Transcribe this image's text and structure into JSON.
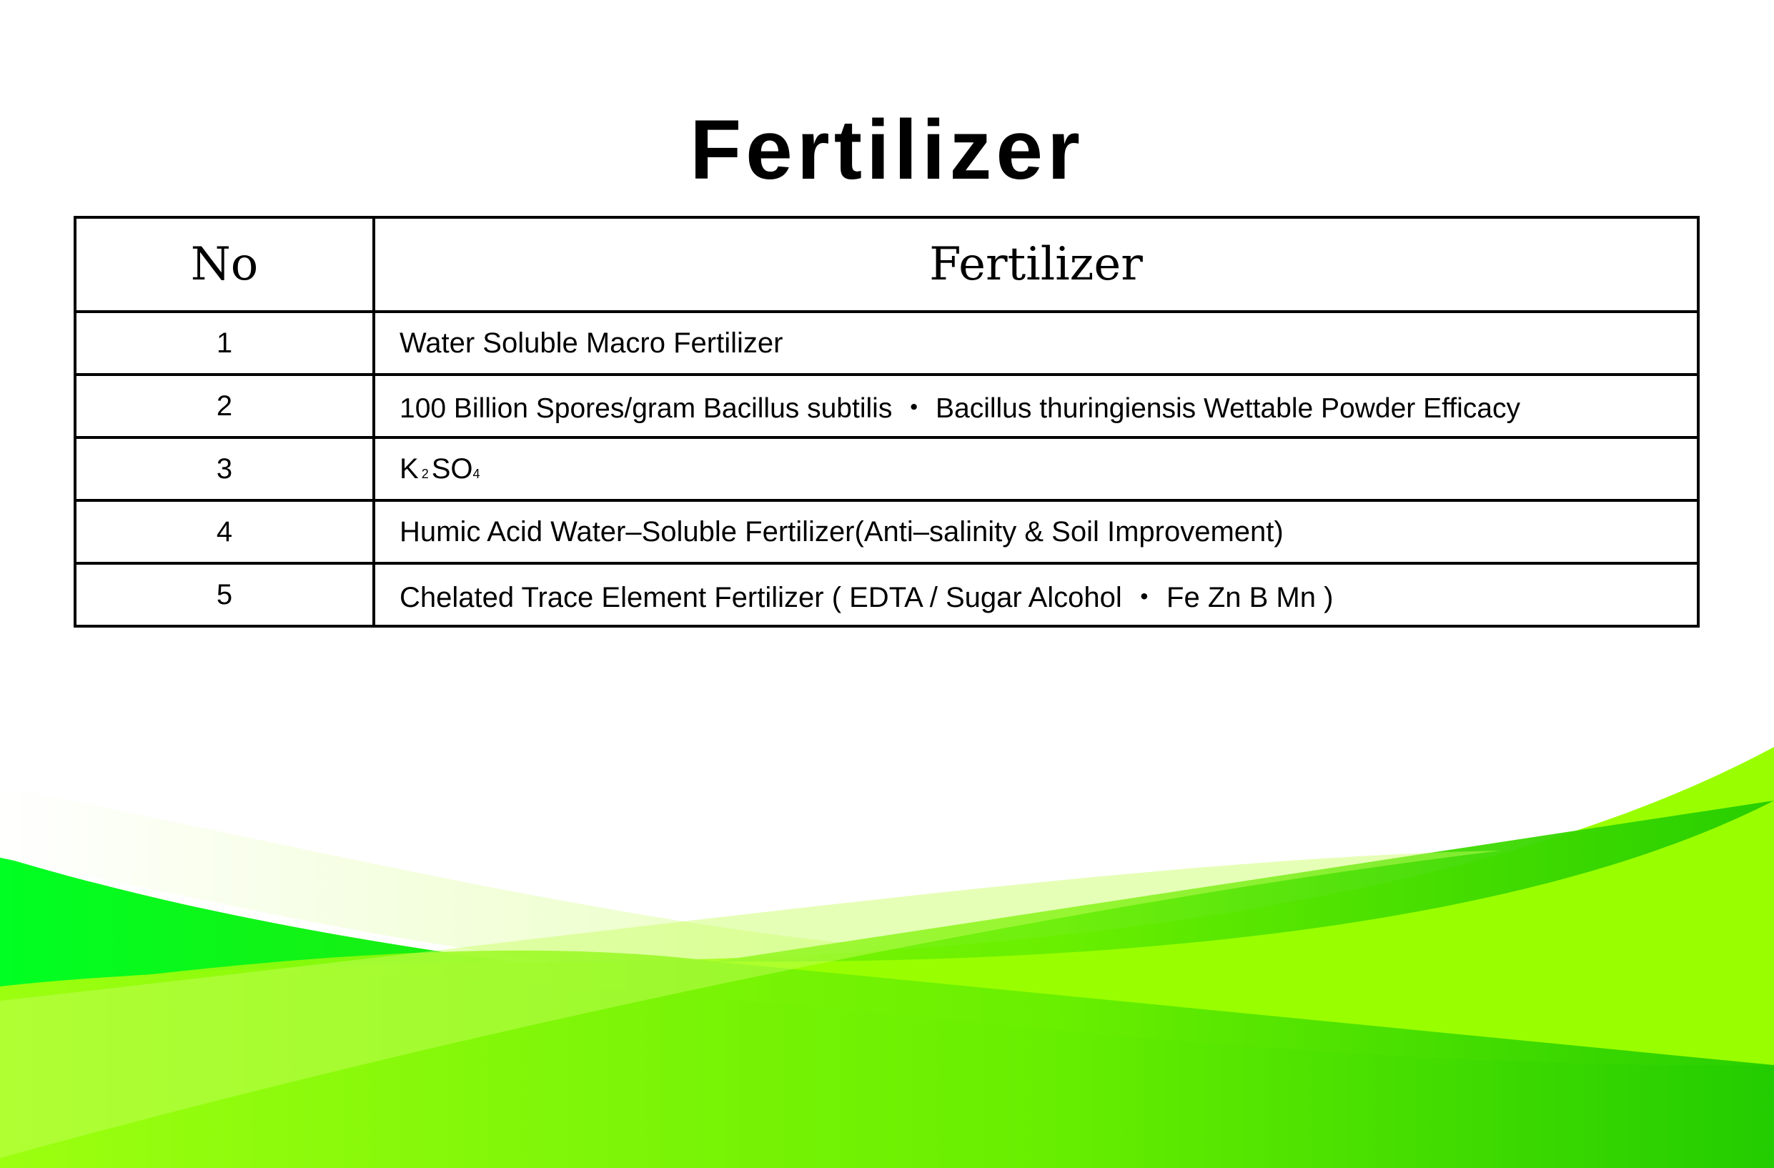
{
  "title": "Fertilizer",
  "table": {
    "headers": [
      "No",
      "Fertilizer"
    ],
    "rows": [
      {
        "no": "1",
        "name": "Water Soluble Macro Fertilizer"
      },
      {
        "no": "2",
        "name": "100 Billion Spores/gram Bacillus subtilis ・ Bacillus thuringiensis Wettable Powder Efficacy"
      },
      {
        "no": "3",
        "name_parts": [
          "K",
          "2",
          "SO",
          "4"
        ]
      },
      {
        "no": "4",
        "name": "Humic Acid Water–Soluble Fertilizer(Anti–salinity & Soil Improvement)"
      },
      {
        "no": "5",
        "name": "Chelated Trace Element Fertilizer ( EDTA / Sugar Alcohol ・ Fe Zn B Mn )"
      }
    ]
  },
  "colors": {
    "dark_green": "#00c800",
    "lime": "#99ff00",
    "bright_green": "#00ff22"
  }
}
